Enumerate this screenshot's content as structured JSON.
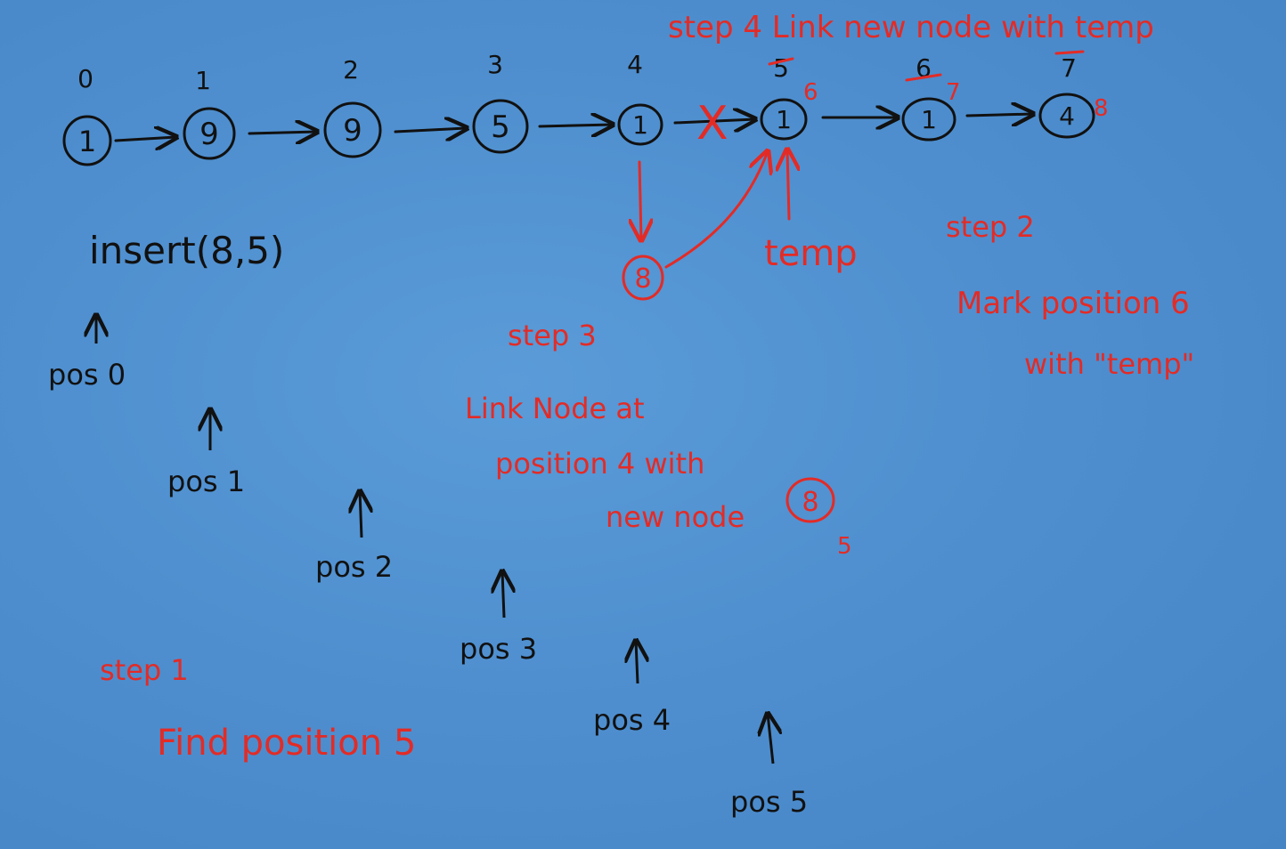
{
  "colors": {
    "background": "#4f8fcf",
    "ink": "#111111",
    "annotation": "#e32b26"
  },
  "list": {
    "indices": [
      "0",
      "1",
      "2",
      "3",
      "4",
      "5",
      "6",
      "7"
    ],
    "values": [
      "1",
      "9",
      "9",
      "5",
      "1",
      "1",
      "1",
      "4"
    ],
    "new_indices": [
      "6",
      "7",
      "8"
    ],
    "removed_link": "X"
  },
  "new_node": {
    "value": "8"
  },
  "call": {
    "text": "insert(8,5)"
  },
  "temp_label": "temp",
  "pointers": [
    "pos 0",
    "pos 1",
    "pos 2",
    "pos 3",
    "pos 4",
    "pos 5"
  ],
  "steps": {
    "step1": {
      "title": "step 1",
      "text": "Find position 5"
    },
    "step2": {
      "title": "step 2",
      "line1": "Mark position 6",
      "line2": "with \"temp\""
    },
    "step3": {
      "title": "step 3",
      "line1": "Link Node at",
      "line2": "position 4 with",
      "line3": "new node",
      "node_value": "8",
      "index": "5"
    },
    "step4": {
      "text": "step 4 Link new node with temp"
    }
  }
}
